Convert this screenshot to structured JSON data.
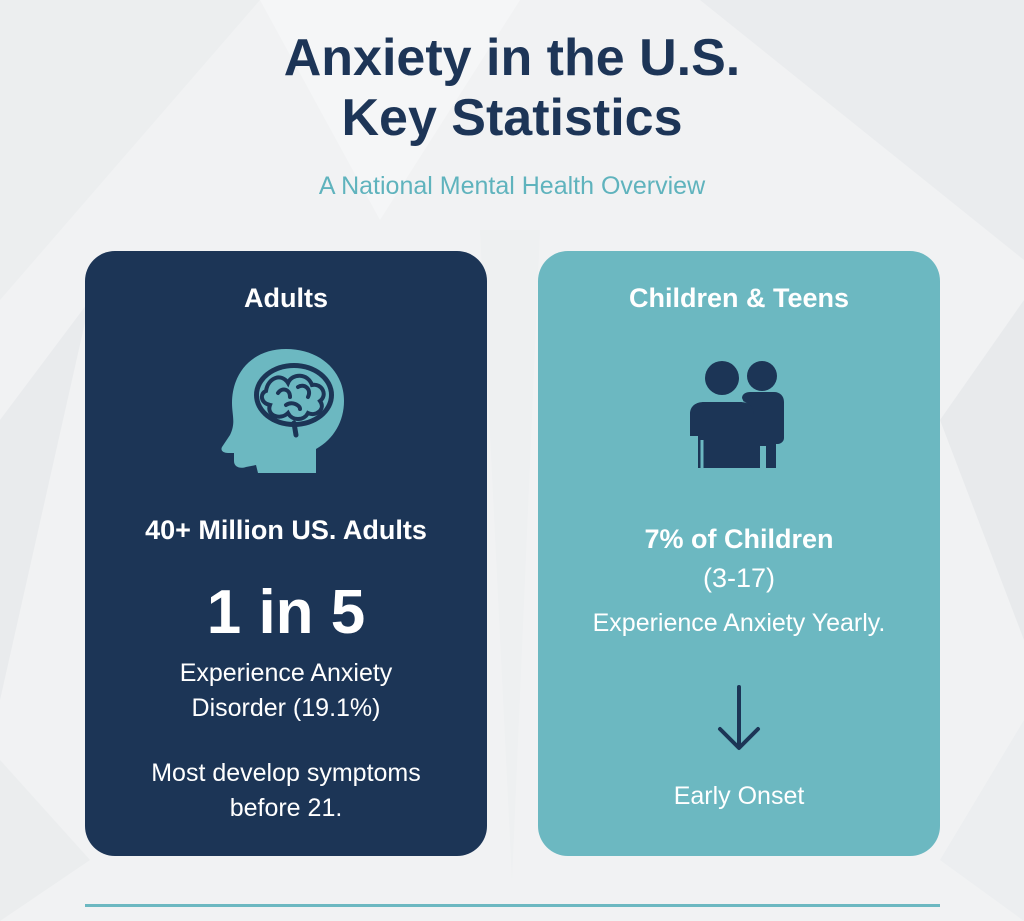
{
  "header": {
    "title_line1": "Anxiety in the U.S.",
    "title_line2": "Key Statistics",
    "subtitle": "A National Mental Health Overview"
  },
  "adults_card": {
    "heading": "Adults",
    "icon": "brain-head-icon",
    "stat_headline": "40+ Million US. Adults",
    "big_stat": "1 in 5",
    "description_line1": "Experience Anxiety",
    "description_line2": "Disorder (19.1%)",
    "note_line1": "Most develop symptoms",
    "note_line2": "before 21."
  },
  "children_card": {
    "heading": "Children & Teens",
    "icon": "two-people-icon",
    "stat_line1": "7% of Children",
    "stat_line2": "(3-17)",
    "description": "Experience Anxiety Yearly.",
    "arrow_icon": "arrow-down-icon",
    "footer_label": "Early Onset"
  },
  "colors": {
    "navy": "#1c3556",
    "teal": "#6cb8c1",
    "title_text": "#1d3557",
    "subtitle_text": "#5fb3bd",
    "background": "#f0f1f2"
  }
}
